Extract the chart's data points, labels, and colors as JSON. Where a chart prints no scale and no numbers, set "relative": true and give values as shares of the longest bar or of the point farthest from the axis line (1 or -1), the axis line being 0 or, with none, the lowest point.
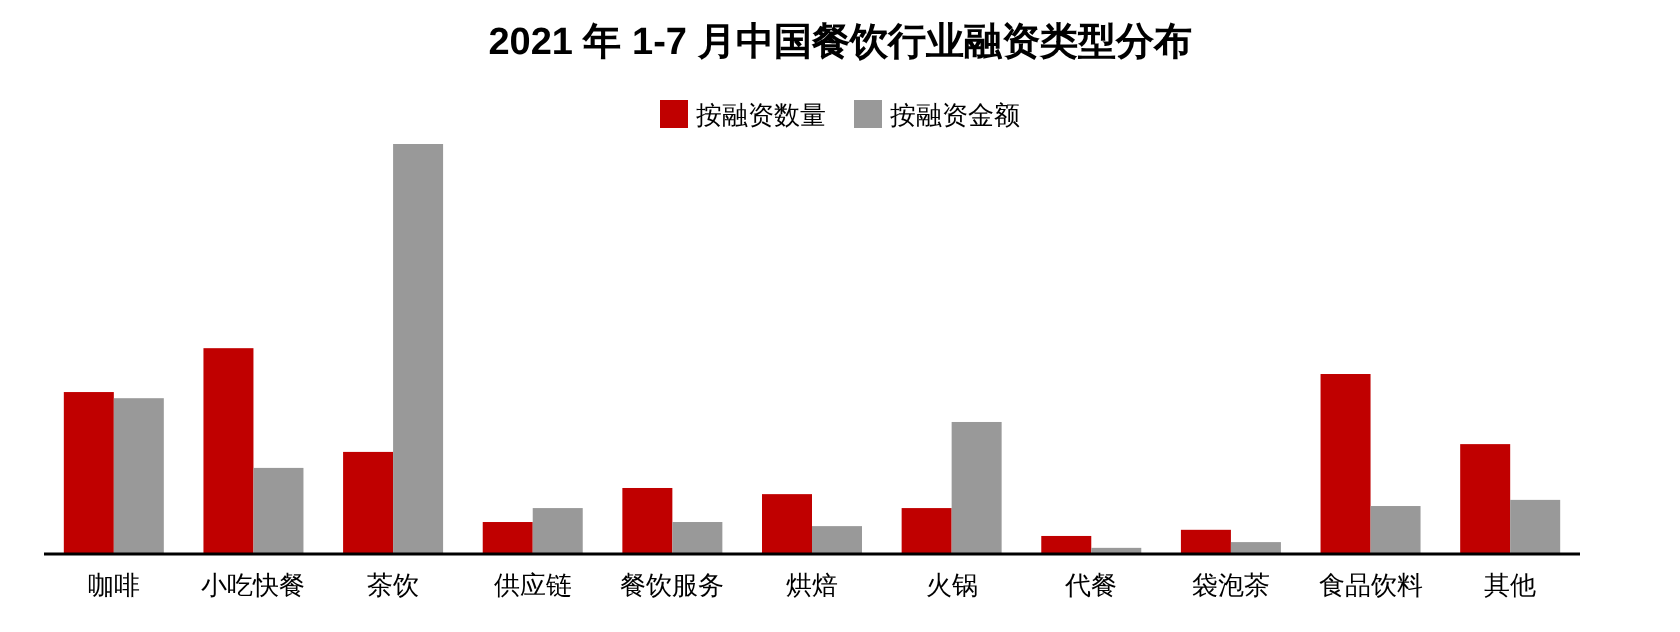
{
  "chart_data": {
    "type": "bar",
    "title": "2021 年 1-7 月中国餐饮行业融资类型分布",
    "relative": true,
    "legend": "top",
    "categories": [
      "咖啡",
      "小吃快餐",
      "茶饮",
      "供应链",
      "餐饮服务",
      "烘焙",
      "火锅",
      "代餐",
      "袋泡茶",
      "食品饮料",
      "其他"
    ],
    "series": [
      {
        "name": "按融资数量",
        "color": "#c00000",
        "values": [
          0.395,
          0.502,
          0.249,
          0.078,
          0.161,
          0.146,
          0.112,
          0.044,
          0.059,
          0.439,
          0.268
        ]
      },
      {
        "name": "按融资金额",
        "color": "#999999",
        "values": [
          0.38,
          0.21,
          1,
          0.112,
          0.078,
          0.068,
          0.322,
          0.015,
          0.029,
          0.117,
          0.132
        ]
      }
    ]
  }
}
